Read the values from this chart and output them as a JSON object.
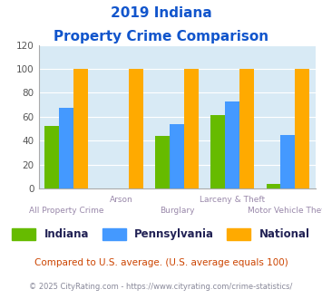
{
  "title_line1": "2019 Indiana",
  "title_line2": "Property Crime Comparison",
  "categories": [
    "All Property Crime",
    "Arson",
    "Burglary",
    "Larceny & Theft",
    "Motor Vehicle Theft"
  ],
  "indiana": [
    52,
    0,
    44,
    61,
    4
  ],
  "pennsylvania": [
    67,
    0,
    54,
    73,
    45
  ],
  "national": [
    100,
    100,
    100,
    100,
    100
  ],
  "indiana_color": "#66bb00",
  "pennsylvania_color": "#4499ff",
  "national_color": "#ffaa00",
  "bg_color": "#d8eaf5",
  "ylim": [
    0,
    120
  ],
  "yticks": [
    0,
    20,
    40,
    60,
    80,
    100,
    120
  ],
  "xlabel_color": "#9988aa",
  "title_color": "#1155cc",
  "legend_indiana": "Indiana",
  "legend_pennsylvania": "Pennsylvania",
  "legend_national": "National",
  "legend_color": "#222255",
  "footnote1": "Compared to U.S. average. (U.S. average equals 100)",
  "footnote2": "© 2025 CityRating.com - https://www.cityrating.com/crime-statistics/",
  "footnote1_color": "#cc4400",
  "footnote2_color": "#888899"
}
